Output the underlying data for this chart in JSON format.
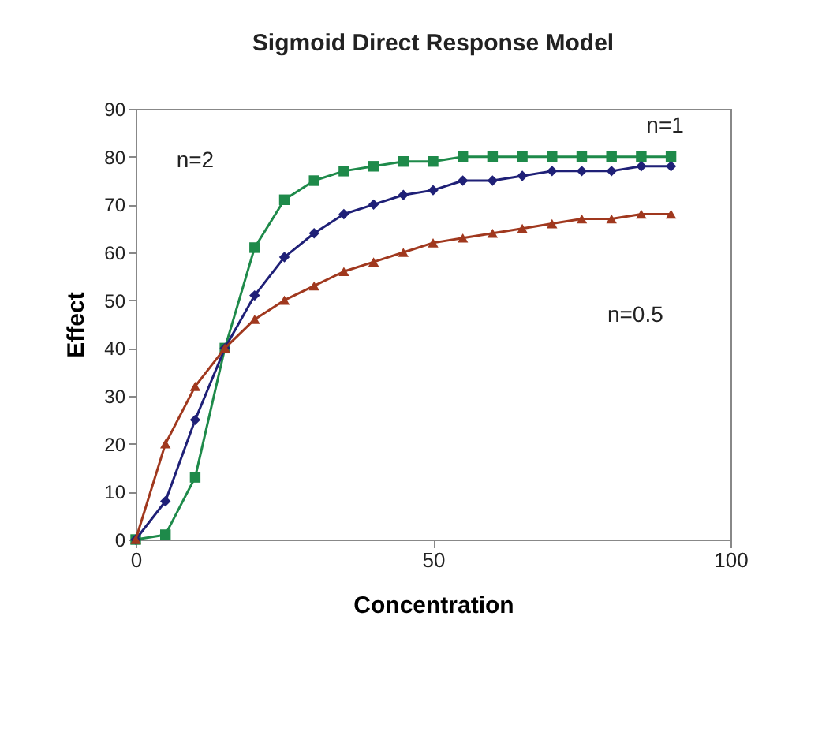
{
  "chart_data": {
    "type": "line",
    "title": "Sigmoid Direct Response Model",
    "xlabel": "Concentration",
    "ylabel": "Effect",
    "x": [
      0,
      5,
      10,
      15,
      20,
      25,
      30,
      35,
      40,
      45,
      50,
      55,
      60,
      65,
      70,
      75,
      80,
      85,
      90
    ],
    "series": [
      {
        "color": "#1e8a4a",
        "marker": "square",
        "values": [
          0,
          1,
          13,
          40,
          61,
          71,
          75,
          77,
          78,
          79,
          79,
          80,
          80,
          80,
          80,
          80,
          80,
          80,
          80
        ]
      },
      {
        "color": "#1f2077",
        "marker": "diamond",
        "values": [
          0,
          8,
          25,
          40,
          51,
          59,
          64,
          68,
          70,
          72,
          73,
          75,
          75,
          76,
          77,
          77,
          77,
          78,
          78
        ]
      },
      {
        "color": "#a0381e",
        "marker": "triangle",
        "values": [
          0,
          20,
          32,
          40,
          46,
          50,
          53,
          56,
          58,
          60,
          62,
          63,
          64,
          65,
          66,
          67,
          67,
          68,
          68
        ]
      }
    ],
    "annotations": [
      "n=2",
      "n=1",
      "n=0.5"
    ],
    "xlim": [
      0,
      100
    ],
    "xticks": [
      0,
      50,
      100
    ],
    "ylim": [
      0,
      90
    ],
    "yticks": [
      0,
      10,
      20,
      30,
      40,
      50,
      60,
      70,
      80,
      90
    ],
    "grid": false,
    "line_style": "solid"
  }
}
